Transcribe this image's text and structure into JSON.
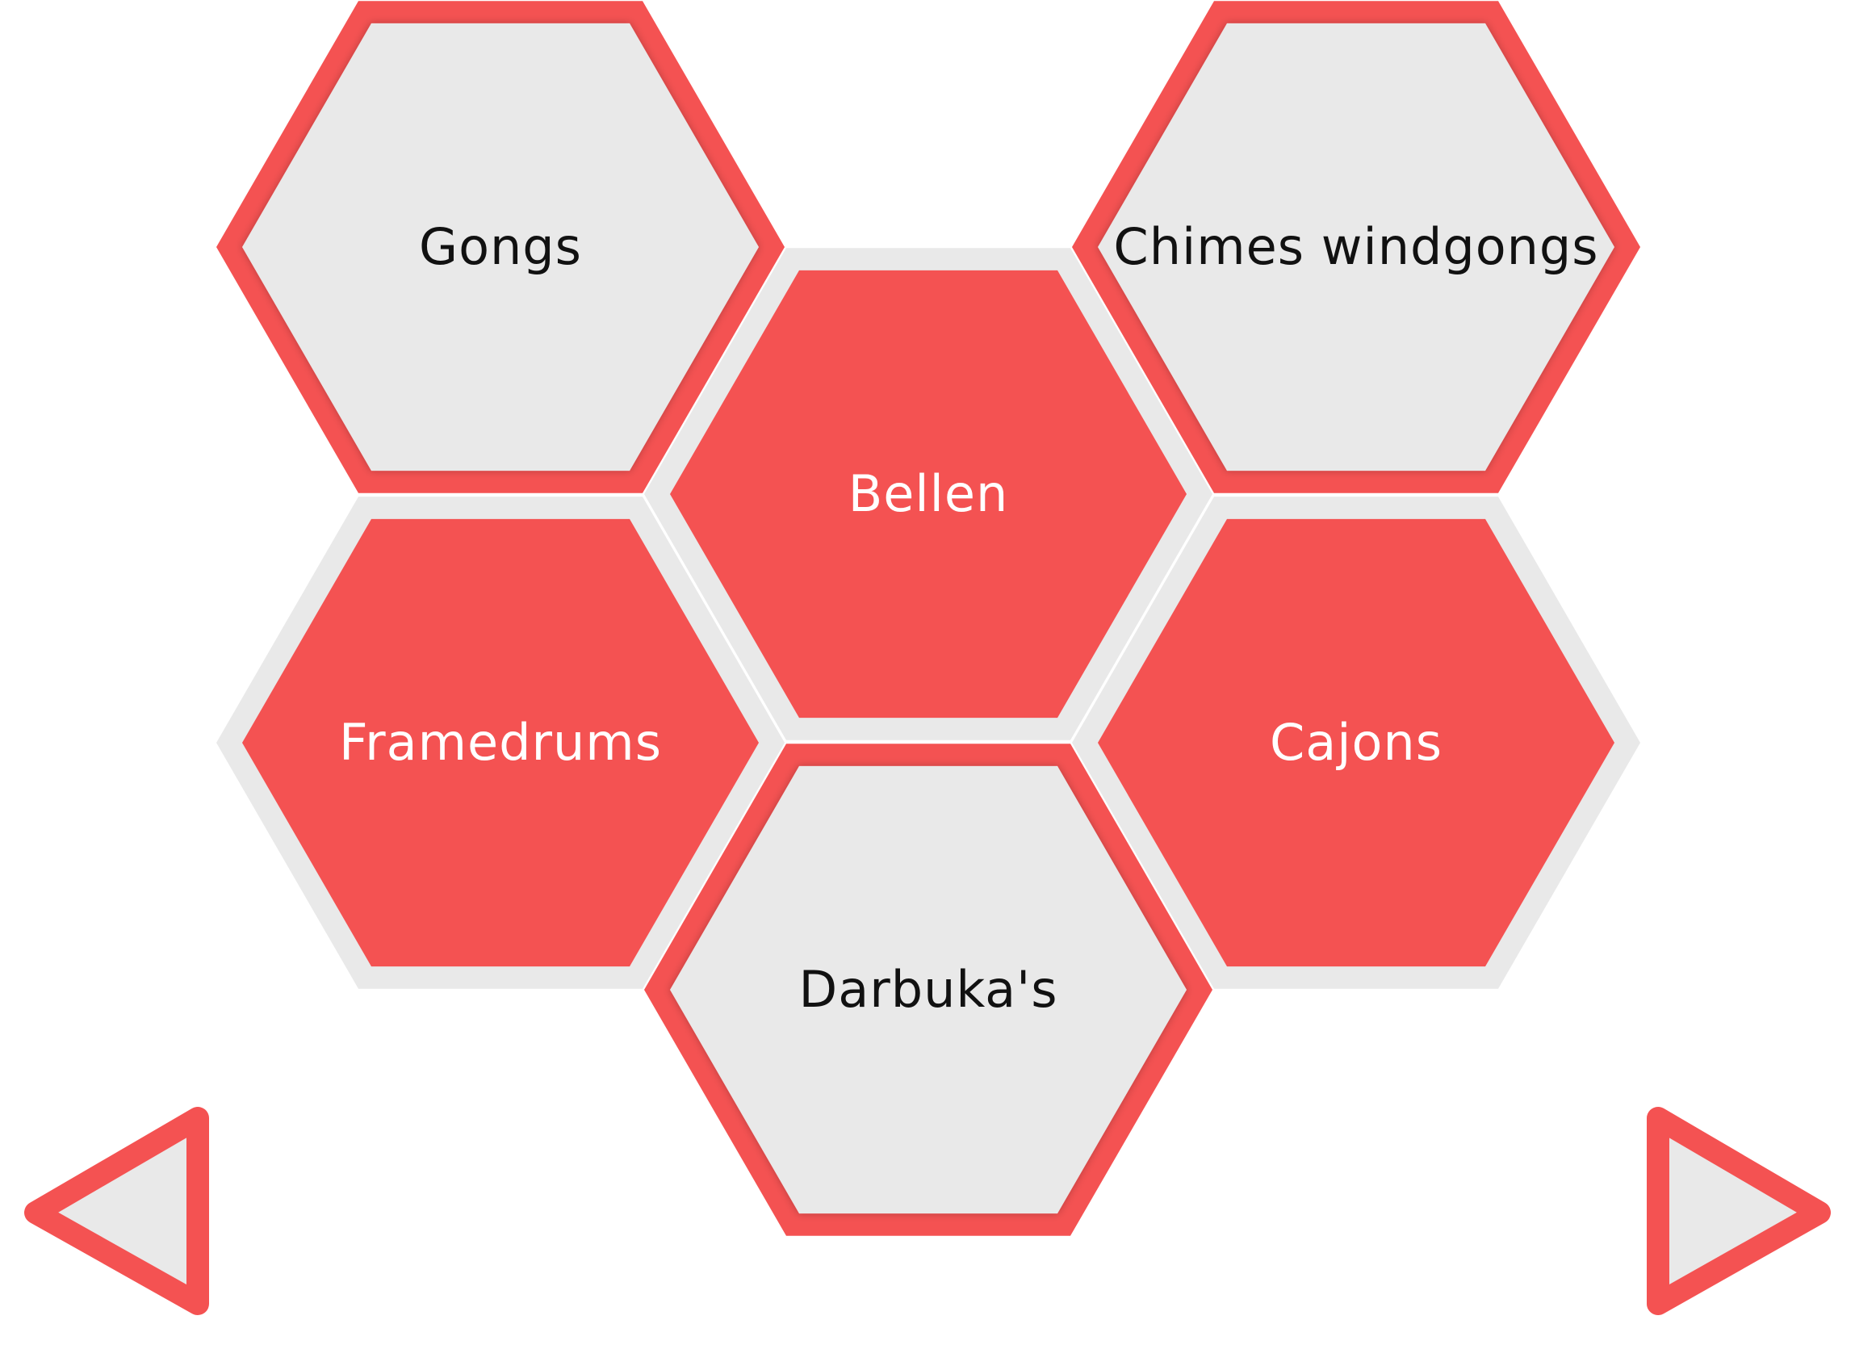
{
  "colors": {
    "accent": "#F45252",
    "tile_light": "#E9E9E9",
    "text_dark": "#111111",
    "text_light": "#FFFFFF",
    "background": "#FFFFFF"
  },
  "tiles": [
    {
      "id": "gongs",
      "label": "Gongs",
      "style": "light"
    },
    {
      "id": "bellen",
      "label": "Bellen",
      "style": "red"
    },
    {
      "id": "chimes",
      "label": "Chimes windgongs",
      "style": "light"
    },
    {
      "id": "framedrums",
      "label": "Framedrums",
      "style": "red"
    },
    {
      "id": "darbukas",
      "label": "Darbuka's",
      "style": "light"
    },
    {
      "id": "cajons",
      "label": "Cajons",
      "style": "red"
    }
  ],
  "navigation": {
    "prev_icon": "triangle-left-icon",
    "next_icon": "triangle-right-icon"
  }
}
